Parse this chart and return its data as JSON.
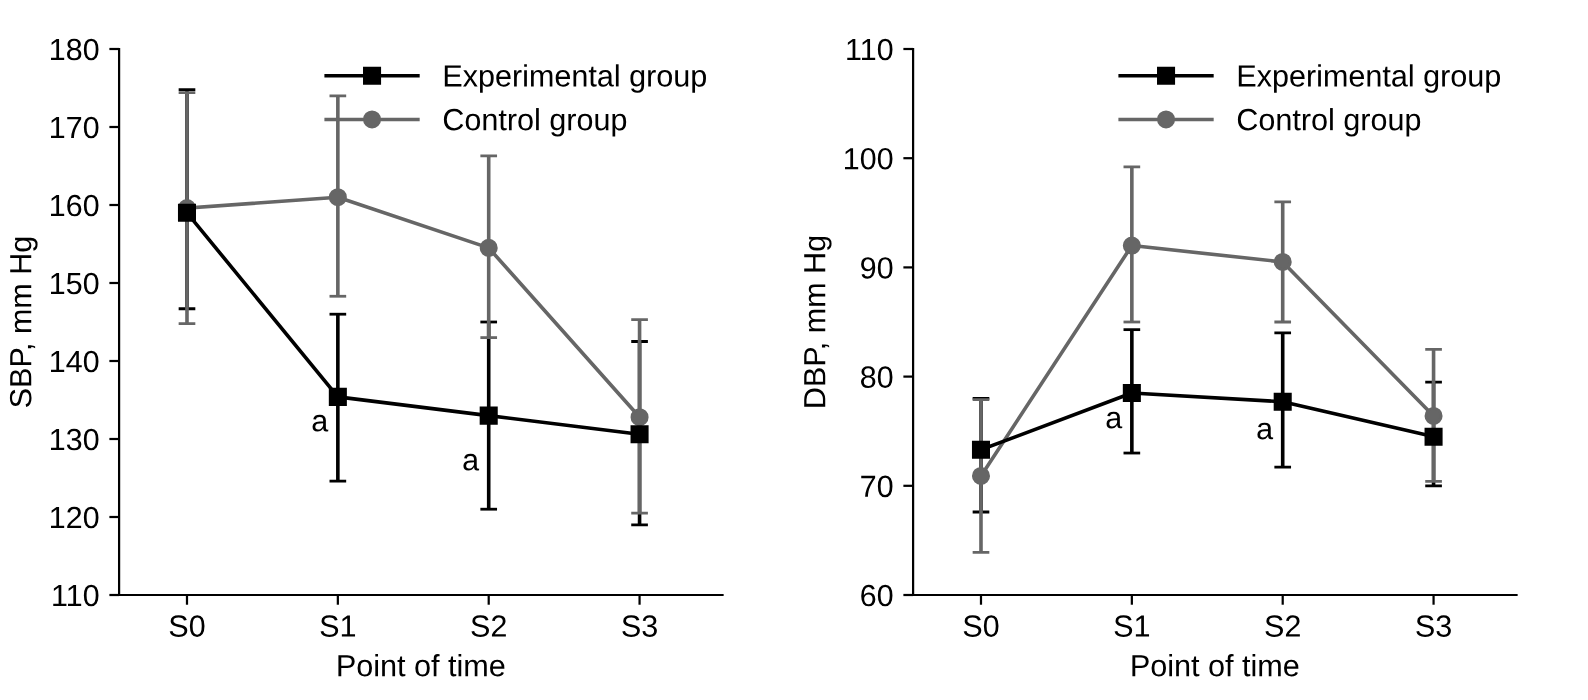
{
  "chart_data": [
    {
      "type": "line",
      "xlabel": "Point of time",
      "ylabel": "SBP, mm Hg",
      "categories": [
        "S0",
        "S1",
        "S2",
        "S3"
      ],
      "ylim": [
        110,
        180
      ],
      "yticks": [
        110,
        120,
        130,
        140,
        150,
        160,
        170,
        180
      ],
      "grid": false,
      "legend": "top right",
      "line_style": "solid",
      "series": [
        {
          "name": "Experimental group",
          "color": "#000000",
          "marker": "square",
          "values": [
            159,
            135.4,
            133,
            130.6
          ],
          "errors": [
            [
              146.7,
              174.8
            ],
            [
              124.6,
              146
            ],
            [
              121,
              145
            ],
            [
              119,
              142.5
            ]
          ]
        },
        {
          "name": "Control group",
          "color": "#666666",
          "marker": "circle",
          "values": [
            159.6,
            161,
            154.5,
            132.8
          ],
          "errors": [
            [
              144.8,
              174.4
            ],
            [
              148.3,
              174
            ],
            [
              143,
              166.3
            ],
            [
              120.5,
              145.3
            ]
          ]
        }
      ],
      "annotations": [
        {
          "text": "a",
          "x": "S1",
          "y": 132
        },
        {
          "text": "a",
          "x": "S2",
          "y": 127
        }
      ]
    },
    {
      "type": "line",
      "xlabel": "Point of time",
      "ylabel": "DBP, mm Hg",
      "categories": [
        "S0",
        "S1",
        "S2",
        "S3"
      ],
      "ylim": [
        60,
        110
      ],
      "yticks": [
        60,
        70,
        80,
        90,
        100,
        110
      ],
      "grid": false,
      "legend": "top right",
      "line_style": "solid",
      "series": [
        {
          "name": "Experimental group",
          "color": "#000000",
          "marker": "square",
          "values": [
            73.3,
            78.5,
            77.7,
            74.5
          ],
          "errors": [
            [
              67.6,
              78
            ],
            [
              73,
              84.3
            ],
            [
              71.7,
              84
            ],
            [
              70,
              79.5
            ]
          ]
        },
        {
          "name": "Control group",
          "color": "#666666",
          "marker": "circle",
          "values": [
            70.9,
            92,
            90.5,
            76.4
          ],
          "errors": [
            [
              63.9,
              77.9
            ],
            [
              85,
              99.2
            ],
            [
              85,
              96
            ],
            [
              70.4,
              82.5
            ]
          ]
        }
      ],
      "annotations": [
        {
          "text": "a",
          "x": "S1",
          "y": 76
        },
        {
          "text": "a",
          "x": "S2",
          "y": 75
        }
      ]
    }
  ]
}
